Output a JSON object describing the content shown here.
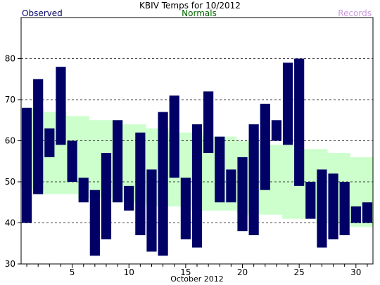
{
  "chart_data": {
    "type": "bar",
    "title": "KBIV Temps for 10/2012",
    "xlabel": "October 2012",
    "legend": {
      "observed": "Observed",
      "normals": "Normals",
      "records": "Records"
    },
    "colors": {
      "observed": "#000066",
      "normals_band": "#ccffcc",
      "normals_text": "#006600",
      "records_text": "#cc99dd",
      "grid": "#000000"
    },
    "ylim": [
      30,
      90
    ],
    "yticks": [
      30,
      40,
      50,
      60,
      70,
      80
    ],
    "xticks": [
      5,
      10,
      15,
      20,
      25,
      30
    ],
    "xlim": [
      0.5,
      31.5
    ],
    "grid": "horizontal-dashed",
    "days": [
      1,
      2,
      3,
      4,
      5,
      6,
      7,
      8,
      9,
      10,
      11,
      12,
      13,
      14,
      15,
      16,
      17,
      18,
      19,
      20,
      21,
      22,
      23,
      24,
      25,
      26,
      27,
      28,
      29,
      30,
      31
    ],
    "observed_high": [
      68,
      75,
      63,
      78,
      60,
      51,
      48,
      57,
      65,
      49,
      62,
      53,
      67,
      71,
      51,
      64,
      72,
      61,
      53,
      56,
      64,
      69,
      65,
      79,
      80,
      50,
      53,
      52,
      50,
      44,
      45
    ],
    "observed_low": [
      40,
      47,
      56,
      59,
      50,
      45,
      32,
      36,
      45,
      43,
      37,
      33,
      32,
      51,
      36,
      34,
      57,
      45,
      45,
      38,
      37,
      48,
      60,
      59,
      49,
      41,
      34,
      36,
      37,
      40,
      40
    ],
    "normal_high": [
      68,
      68,
      67,
      67,
      66,
      66,
      65,
      65,
      65,
      64,
      64,
      63,
      63,
      62,
      62,
      62,
      61,
      61,
      61,
      60,
      60,
      59,
      59,
      59,
      58,
      58,
      58,
      57,
      57,
      56,
      56
    ],
    "normal_low": [
      48,
      48,
      47,
      47,
      47,
      46,
      46,
      46,
      45,
      45,
      45,
      44,
      44,
      44,
      44,
      43,
      43,
      43,
      43,
      42,
      42,
      42,
      42,
      41,
      41,
      41,
      40,
      40,
      40,
      39,
      39
    ]
  }
}
